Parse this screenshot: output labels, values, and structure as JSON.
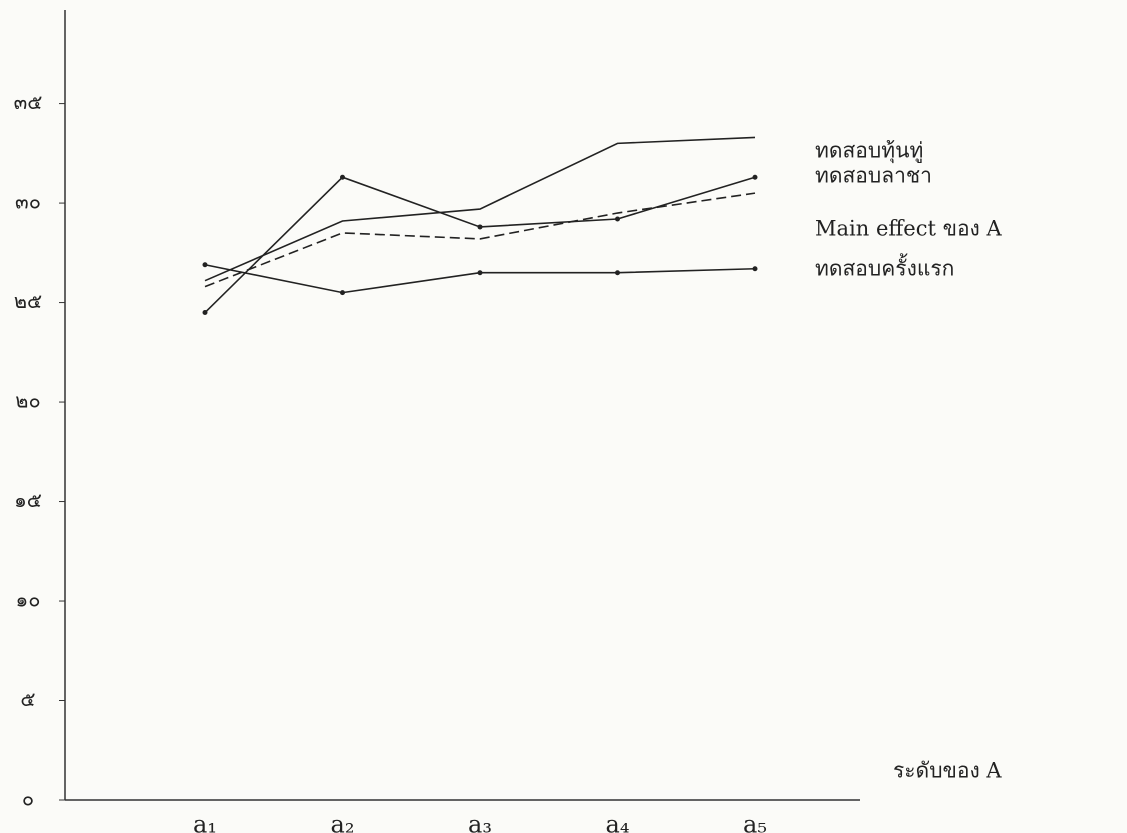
{
  "chart_data": {
    "type": "line",
    "x_label": "ระดับของ A",
    "categories": [
      "a₁",
      "a₂",
      "a₃",
      "a₄",
      "a₅"
    ],
    "series": [
      {
        "name": "ทดสอบทุ้นทู่",
        "color": "#222222",
        "style": "solid",
        "marker": false,
        "values": [
          26.1,
          29.1,
          29.7,
          33.0,
          33.3
        ]
      },
      {
        "name": "ทดสอบลาชา",
        "color": "#222222",
        "style": "solid",
        "marker": true,
        "values": [
          24.5,
          31.3,
          28.8,
          29.2,
          31.3
        ]
      },
      {
        "name": "Main effect ของ A",
        "color": "#222222",
        "style": "dashed",
        "marker": false,
        "values": [
          25.8,
          28.5,
          28.2,
          29.5,
          30.5
        ]
      },
      {
        "name": "ทดสอบครั้งแรก",
        "color": "#222222",
        "style": "solid",
        "marker": true,
        "values": [
          26.9,
          25.5,
          26.5,
          26.5,
          26.7
        ]
      }
    ],
    "ylim": [
      0,
      39
    ],
    "yticks": [
      {
        "value": 0,
        "label": "๐"
      },
      {
        "value": 5,
        "label": "๕"
      },
      {
        "value": 10,
        "label": "๑๐"
      },
      {
        "value": 15,
        "label": "๑๕"
      },
      {
        "value": 20,
        "label": "๒๐"
      },
      {
        "value": 25,
        "label": "๒๕"
      },
      {
        "value": 30,
        "label": "๓๐"
      },
      {
        "value": 35,
        "label": "๓๕"
      }
    ],
    "grid": false
  }
}
